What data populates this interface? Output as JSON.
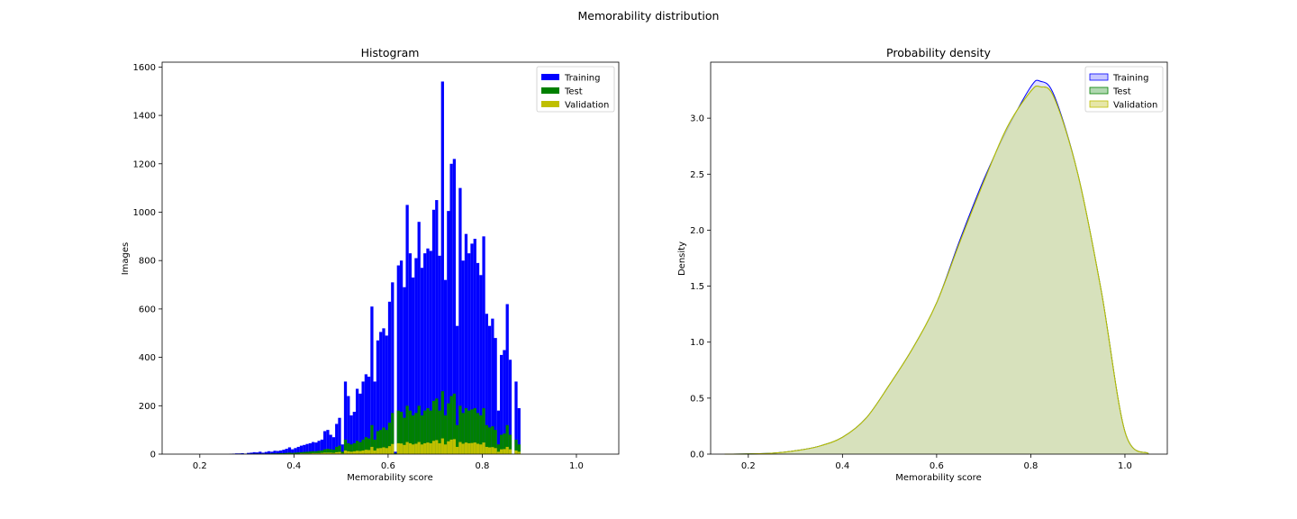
{
  "figure": {
    "title": "Memorability distribution"
  },
  "chart_data": [
    {
      "type": "bar",
      "title": "Histogram",
      "xlabel": "Memorability score",
      "ylabel": "Images",
      "xlim": [
        0.12,
        1.09
      ],
      "ylim": [
        0,
        1620
      ],
      "xticks": [
        0.2,
        0.4,
        0.6,
        0.8,
        1.0
      ],
      "xtick_labels": [
        "0.2",
        "0.4",
        "0.6",
        "0.8",
        "1.0"
      ],
      "yticks": [
        0,
        200,
        400,
        600,
        800,
        1000,
        1200,
        1400,
        1600
      ],
      "ytick_labels": [
        "0",
        "200",
        "400",
        "600",
        "800",
        "1000",
        "1200",
        "1400",
        "1600"
      ],
      "legend": {
        "position": "top-right"
      },
      "bin_start": 0.15,
      "bin_width": 0.00625,
      "series": [
        {
          "name": "Training",
          "color": "#0000ff",
          "values": [
            0,
            0,
            0,
            0,
            0,
            0,
            0,
            0,
            0,
            0,
            0,
            0,
            0,
            0,
            0,
            0,
            0,
            0,
            1,
            2,
            3,
            3,
            4,
            2,
            5,
            6,
            8,
            7,
            10,
            6,
            9,
            12,
            10,
            14,
            13,
            15,
            18,
            22,
            28,
            20,
            25,
            30,
            35,
            38,
            42,
            45,
            50,
            48,
            55,
            60,
            95,
            100,
            80,
            70,
            125,
            150,
            40,
            300,
            240,
            160,
            175,
            270,
            250,
            300,
            330,
            320,
            610,
            300,
            470,
            505,
            520,
            490,
            630,
            710,
            10,
            780,
            800,
            690,
            1030,
            830,
            730,
            810,
            960,
            770,
            830,
            850,
            840,
            1010,
            1050,
            820,
            1540,
            720,
            1005,
            1200,
            1220,
            530,
            1100,
            800,
            910,
            830,
            870,
            890,
            790,
            740,
            900,
            580,
            530,
            560,
            480,
            180,
            410,
            430,
            620,
            390,
            1,
            300,
            190
          ],
          "note": ""
        },
        {
          "name": "Test",
          "color": "#008000",
          "values": [
            0,
            0,
            0,
            0,
            0,
            0,
            0,
            0,
            0,
            0,
            0,
            0,
            0,
            0,
            0,
            0,
            0,
            0,
            0,
            0,
            0,
            1,
            1,
            1,
            1,
            1,
            2,
            2,
            2,
            2,
            2,
            2,
            3,
            3,
            3,
            4,
            4,
            5,
            6,
            5,
            6,
            7,
            8,
            9,
            10,
            11,
            12,
            12,
            14,
            15,
            20,
            22,
            20,
            18,
            30,
            35,
            10,
            60,
            45,
            40,
            45,
            55,
            50,
            60,
            70,
            65,
            120,
            60,
            95,
            100,
            110,
            100,
            130,
            170,
            3,
            180,
            175,
            150,
            200,
            180,
            160,
            170,
            200,
            160,
            180,
            190,
            180,
            220,
            230,
            180,
            260,
            160,
            210,
            240,
            250,
            120,
            200,
            170,
            190,
            180,
            185,
            190,
            170,
            160,
            190,
            120,
            110,
            115,
            100,
            40,
            80,
            85,
            120,
            80,
            1,
            60,
            40
          ]
        },
        {
          "name": "Validation",
          "color": "#bfbf00",
          "values": [
            0,
            0,
            0,
            0,
            0,
            0,
            0,
            0,
            0,
            0,
            0,
            0,
            0,
            0,
            0,
            0,
            0,
            0,
            0,
            0,
            0,
            0,
            0,
            0,
            0,
            0,
            0,
            0,
            1,
            1,
            1,
            1,
            1,
            1,
            1,
            1,
            1,
            2,
            2,
            2,
            2,
            2,
            3,
            3,
            3,
            3,
            4,
            4,
            4,
            5,
            6,
            6,
            6,
            5,
            8,
            9,
            3,
            15,
            12,
            10,
            12,
            14,
            13,
            15,
            18,
            17,
            30,
            15,
            24,
            25,
            28,
            25,
            33,
            42,
            1,
            45,
            44,
            38,
            50,
            45,
            40,
            43,
            50,
            40,
            45,
            48,
            45,
            55,
            58,
            45,
            65,
            40,
            53,
            60,
            62,
            30,
            50,
            43,
            48,
            45,
            46,
            48,
            43,
            40,
            48,
            30,
            28,
            29,
            25,
            10,
            20,
            21,
            30,
            20,
            0,
            15,
            10
          ]
        }
      ]
    },
    {
      "type": "area",
      "title": "Probability density",
      "xlabel": "Memorability score",
      "ylabel": "Density",
      "xlim": [
        0.12,
        1.09
      ],
      "ylim": [
        0,
        3.5
      ],
      "xticks": [
        0.2,
        0.4,
        0.6,
        0.8,
        1.0
      ],
      "xtick_labels": [
        "0.2",
        "0.4",
        "0.6",
        "0.8",
        "1.0"
      ],
      "yticks": [
        0,
        0.5,
        1.0,
        1.5,
        2.0,
        2.5,
        3.0
      ],
      "ytick_labels": [
        "0.0",
        "0.5",
        "1.0",
        "1.5",
        "2.0",
        "2.5",
        "3.0"
      ],
      "legend": {
        "position": "top-right"
      },
      "x": [
        0.15,
        0.2,
        0.25,
        0.3,
        0.35,
        0.4,
        0.45,
        0.5,
        0.55,
        0.6,
        0.65,
        0.7,
        0.75,
        0.8,
        0.82,
        0.85,
        0.9,
        0.95,
        1.0,
        1.05
      ],
      "series": [
        {
          "name": "Training",
          "line": "#0000ff",
          "fill": "#c6c6ff",
          "values": [
            0.0,
            0.002,
            0.008,
            0.03,
            0.07,
            0.15,
            0.32,
            0.62,
            0.95,
            1.35,
            1.92,
            2.45,
            2.9,
            3.28,
            3.33,
            3.2,
            2.5,
            1.45,
            0.2,
            0.005
          ]
        },
        {
          "name": "Test",
          "line": "#008000",
          "fill": "#b0d8b0",
          "values": [
            0.0,
            0.002,
            0.008,
            0.03,
            0.07,
            0.15,
            0.32,
            0.62,
            0.95,
            1.35,
            1.9,
            2.43,
            2.92,
            3.24,
            3.28,
            3.18,
            2.5,
            1.45,
            0.2,
            0.005
          ]
        },
        {
          "name": "Validation",
          "line": "#bfbf00",
          "fill": "#e6e6a8",
          "values": [
            0.0,
            0.002,
            0.008,
            0.03,
            0.07,
            0.15,
            0.32,
            0.62,
            0.95,
            1.35,
            1.9,
            2.43,
            2.92,
            3.24,
            3.28,
            3.18,
            2.5,
            1.45,
            0.2,
            0.005
          ]
        }
      ]
    }
  ]
}
